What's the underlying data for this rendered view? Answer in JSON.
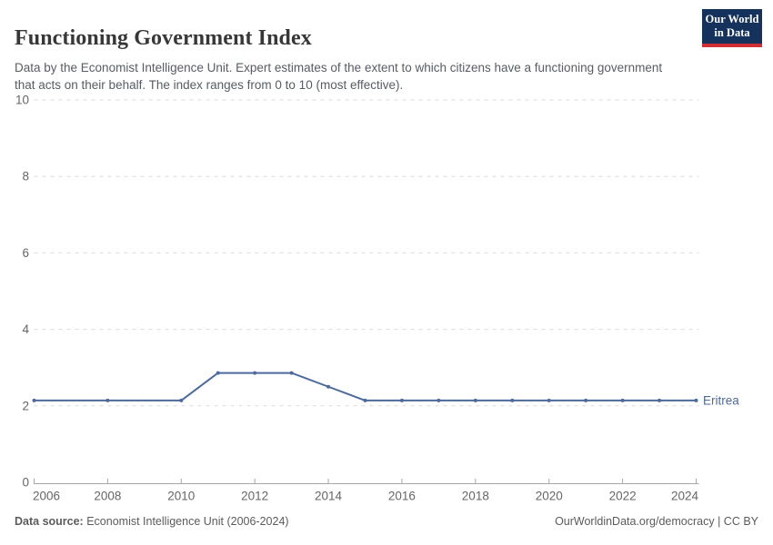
{
  "header": {
    "title": "Functioning Government Index",
    "subtitle": "Data by the Economist Intelligence Unit. Expert estimates of the extent to which citizens have a functioning government that acts on their behalf. The index ranges from 0 to 10 (most effective).",
    "logo": {
      "line1": "Our World",
      "line2": "in Data",
      "bg_color": "#14325C",
      "bar_color": "#D02E35"
    }
  },
  "chart_data": {
    "type": "line",
    "title": "Functioning Government Index",
    "xlabel": "",
    "ylabel": "",
    "xlim": [
      2006,
      2024
    ],
    "ylim": [
      0,
      10
    ],
    "x_ticks": [
      2006,
      2008,
      2010,
      2012,
      2014,
      2016,
      2018,
      2020,
      2022,
      2024
    ],
    "y_ticks": [
      0,
      2,
      4,
      6,
      8,
      10
    ],
    "grid": "horizontal-dashed",
    "legend_position": "line-end-label",
    "series": [
      {
        "name": "Eritrea",
        "color": "#4C6A9C",
        "points": [
          [
            2006,
            2.14
          ],
          [
            2008,
            2.14
          ],
          [
            2010,
            2.14
          ],
          [
            2011,
            2.86
          ],
          [
            2012,
            2.86
          ],
          [
            2013,
            2.86
          ],
          [
            2014,
            2.5
          ],
          [
            2015,
            2.14
          ],
          [
            2016,
            2.14
          ],
          [
            2017,
            2.14
          ],
          [
            2018,
            2.14
          ],
          [
            2019,
            2.14
          ],
          [
            2020,
            2.14
          ],
          [
            2021,
            2.14
          ],
          [
            2022,
            2.14
          ],
          [
            2023,
            2.14
          ],
          [
            2024,
            2.14
          ]
        ]
      }
    ],
    "colors": {
      "grid": "#DBDBDB",
      "axis": "#A7A7A7",
      "tick_label": "#666666"
    }
  },
  "footer": {
    "source_label": "Data source:",
    "source_text": " Economist Intelligence Unit (2006-2024)",
    "right_text": "OurWorldinData.org/democracy | CC BY"
  }
}
